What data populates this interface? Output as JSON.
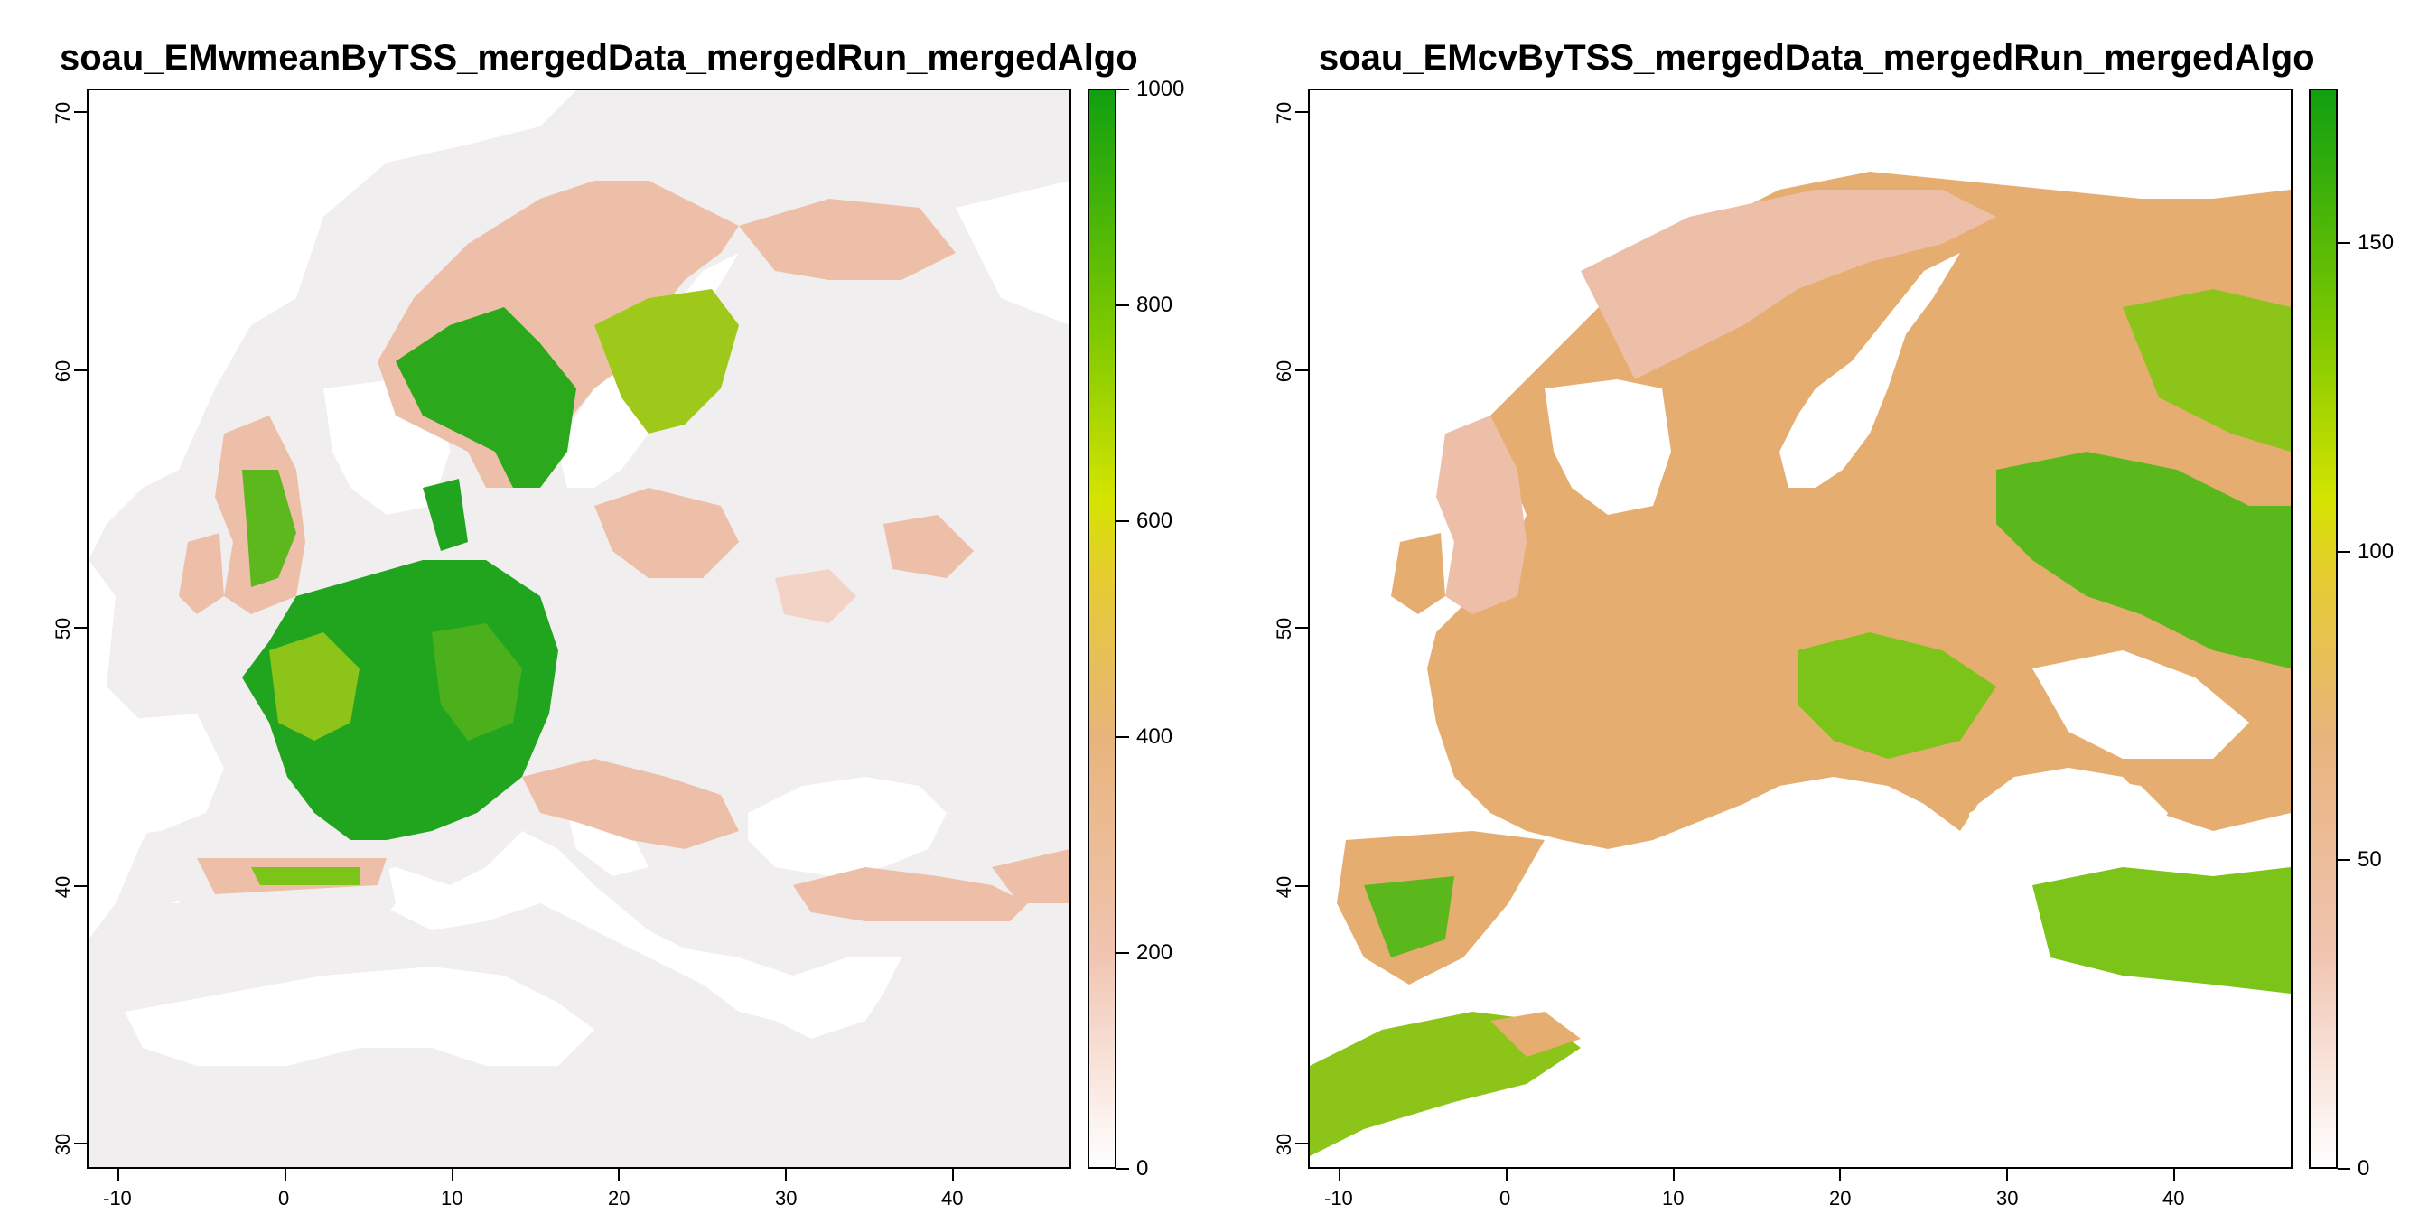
{
  "maps": [
    {
      "title": "soau_EMwmeanByTSS_mergedData_mergedRun_mergedAlgo",
      "x_ticks": [
        "-10",
        "0",
        "10",
        "20",
        "30",
        "40"
      ],
      "y_ticks": [
        "30",
        "40",
        "50",
        "60",
        "70"
      ],
      "legend_ticks": [
        "0",
        "200",
        "400",
        "600",
        "800",
        "1000"
      ],
      "legend_range": [
        0,
        1000
      ],
      "legend_colors": [
        "#ffffff",
        "#f0c4b0",
        "#e8b47c",
        "#e6cc30",
        "#d4e400",
        "#7cc800",
        "#10a010"
      ]
    },
    {
      "title": "soau_EMcvByTSS_mergedData_mergedRun_mergedAlgo",
      "x_ticks": [
        "-10",
        "0",
        "10",
        "20",
        "30",
        "40"
      ],
      "y_ticks": [
        "30",
        "40",
        "50",
        "60",
        "70"
      ],
      "legend_ticks": [
        "0",
        "50",
        "100",
        "150"
      ],
      "legend_range": [
        0,
        175
      ],
      "legend_colors": [
        "#ffffff",
        "#f0c4b0",
        "#e8b47c",
        "#e6cc30",
        "#d4e400",
        "#7cc800",
        "#10a010"
      ]
    }
  ],
  "colors": {
    "land_low": "#f0eeee",
    "land_pink": "#edbfa8",
    "land_orange": "#e6ad70",
    "land_yellow": "#c9d800",
    "land_green": "#22a51e",
    "sea": "#ffffff"
  }
}
